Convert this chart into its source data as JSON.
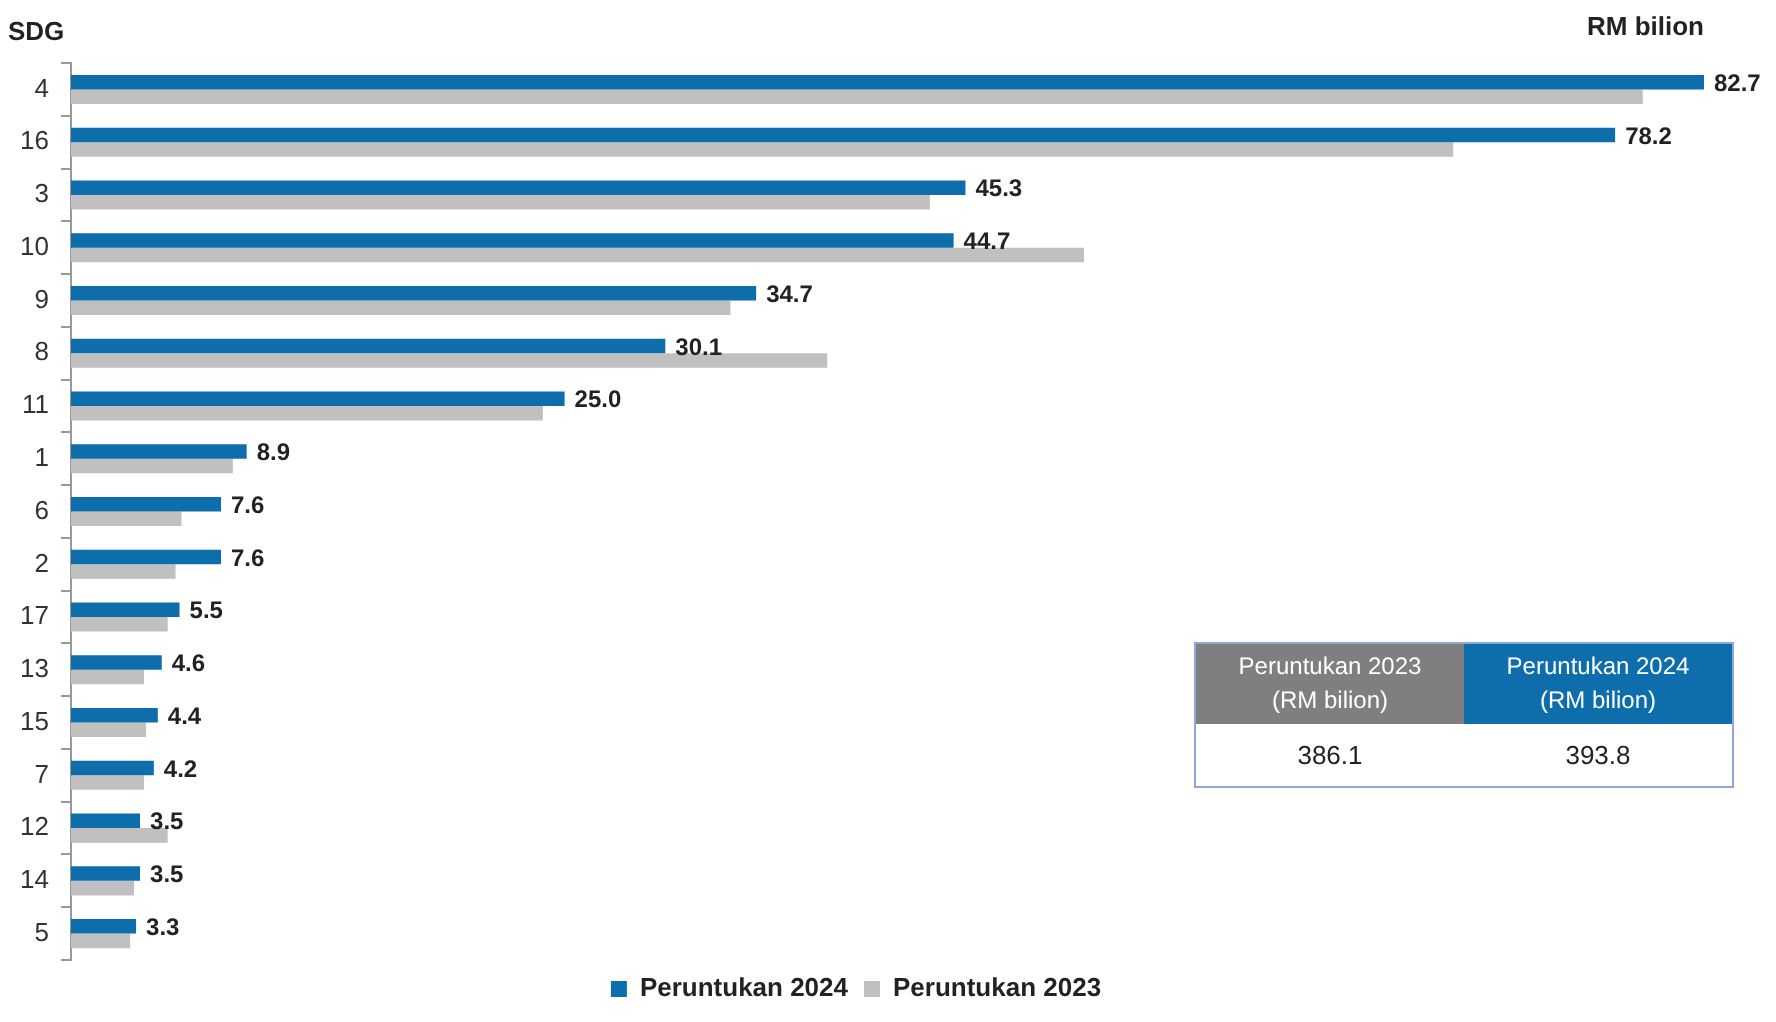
{
  "chart_data": {
    "type": "bar",
    "orientation": "horizontal",
    "xlabel": "RM bilion",
    "ylabel": "SDG",
    "categories": [
      "4",
      "16",
      "3",
      "10",
      "9",
      "8",
      "11",
      "1",
      "6",
      "2",
      "17",
      "13",
      "15",
      "7",
      "12",
      "14",
      "5"
    ],
    "series": [
      {
        "name": "Peruntukan 2024",
        "color": "#0e6eab",
        "values": [
          82.7,
          78.2,
          45.3,
          44.7,
          34.7,
          30.1,
          25.0,
          8.9,
          7.6,
          7.6,
          5.5,
          4.6,
          4.4,
          4.2,
          3.5,
          3.5,
          3.3
        ],
        "value_labels": [
          "82.7",
          "78.2",
          "45.3",
          "44.7",
          "34.7",
          "30.1",
          "25.0",
          "8.9",
          "7.6",
          "7.6",
          "5.5",
          "4.6",
          "4.4",
          "4.2",
          "3.5",
          "3.5",
          "3.3"
        ]
      },
      {
        "name": "Peruntukan 2023",
        "color": "#c0c0c0",
        "values": [
          79.6,
          70.0,
          43.5,
          51.3,
          33.4,
          38.3,
          23.9,
          8.2,
          5.6,
          5.3,
          4.9,
          3.7,
          3.8,
          3.7,
          4.9,
          3.2,
          3.0
        ]
      }
    ],
    "legend": "bottom",
    "annotations": [
      "Peruntukan 2023 (RM bilion)",
      "Peruntukan 2024 (RM bilion)",
      "386.1",
      "393.8"
    ]
  }
}
